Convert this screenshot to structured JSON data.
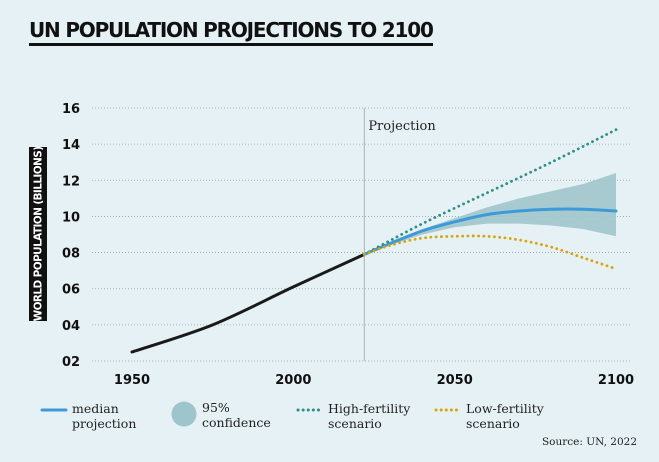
{
  "title": "UN POPULATION PROJECTIONS TO 2100",
  "source": "Source: UN, 2022",
  "legend": [
    {
      "label": "median\nprojection",
      "color": "#3e9ad6",
      "icon": "solid-line-icon"
    },
    {
      "label": "95%\nconfidence",
      "color": "#9ec5cc",
      "icon": "filled-circle-icon"
    },
    {
      "label": "High-fertility\nscenario",
      "color": "#2d8f87",
      "icon": "dotted-line-icon"
    },
    {
      "label": "Low-fertility\nscenario",
      "color": "#d9a30c",
      "icon": "dotted-line-icon"
    }
  ],
  "chart_data": {
    "type": "line",
    "ylabel": "WORLD POPULATION (BILLIONS)",
    "xlabel": "",
    "xlim": [
      1950,
      2100
    ],
    "ylim": [
      2,
      16
    ],
    "xticks": [
      "1950",
      "2000",
      "2050",
      "2100"
    ],
    "xtick_values": [
      1950,
      2000,
      2050,
      2100
    ],
    "yticks": [
      "02",
      "04",
      "06",
      "08",
      "10",
      "12",
      "14",
      "16"
    ],
    "ytick_values": [
      2,
      4,
      6,
      8,
      10,
      12,
      14,
      16
    ],
    "grid": true,
    "annotation": {
      "text": "Projection",
      "x": 2022
    },
    "series": [
      {
        "name": "historical",
        "style": "solid",
        "color": "#1a1a1a",
        "x": [
          1950,
          1975,
          2000,
          2022
        ],
        "y": [
          2.5,
          4.0,
          6.1,
          7.9
        ]
      },
      {
        "name": "median projection",
        "style": "solid",
        "color": "#3e9ad6",
        "x": [
          2022,
          2030,
          2040,
          2050,
          2060,
          2070,
          2080,
          2090,
          2100
        ],
        "y": [
          7.9,
          8.5,
          9.2,
          9.7,
          10.1,
          10.3,
          10.4,
          10.4,
          10.3
        ]
      },
      {
        "name": "High-fertility scenario",
        "style": "dotted",
        "color": "#2d8f87",
        "x": [
          2022,
          2040,
          2060,
          2080,
          2100
        ],
        "y": [
          7.9,
          9.6,
          11.3,
          13.0,
          14.8
        ]
      },
      {
        "name": "Low-fertility scenario",
        "style": "dotted",
        "color": "#d9a30c",
        "x": [
          2022,
          2030,
          2040,
          2050,
          2060,
          2070,
          2080,
          2090,
          2100
        ],
        "y": [
          7.9,
          8.4,
          8.8,
          8.9,
          8.9,
          8.7,
          8.3,
          7.7,
          7.1
        ]
      }
    ],
    "confidence_band": {
      "name": "95% confidence",
      "color": "#9ec5cc",
      "x": [
        2022,
        2030,
        2040,
        2050,
        2060,
        2070,
        2080,
        2090,
        2100
      ],
      "lower": [
        7.9,
        8.4,
        9.0,
        9.4,
        9.6,
        9.6,
        9.5,
        9.3,
        8.9
      ],
      "upper": [
        7.9,
        8.6,
        9.3,
        9.9,
        10.5,
        11.0,
        11.4,
        11.8,
        12.4
      ]
    }
  }
}
